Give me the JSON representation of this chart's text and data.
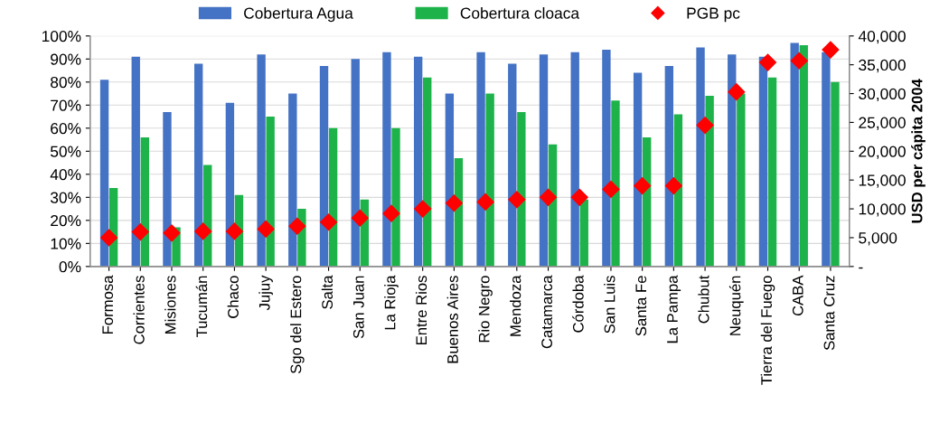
{
  "chart_data": {
    "type": "bar",
    "categories": [
      "Formosa",
      "Corrientes",
      "Misiones",
      "Tucumán",
      "Chaco",
      "Jujuy",
      "Sgo del Estero",
      "Salta",
      "San Juan",
      "La Rioja",
      "Entre Rios",
      "Buenos Aires",
      "Rio Negro",
      "Mendoza",
      "Catamarca",
      "Córdoba",
      "San Luis",
      "Santa Fe",
      "La Pampa",
      "Chubut",
      "Neuquén",
      "Tierra del Fuego",
      "CABA",
      "Santa Cruz"
    ],
    "series": [
      {
        "name": "Cobertura Agua",
        "color": "#4472c4",
        "values": [
          81,
          91,
          67,
          88,
          71,
          92,
          75,
          87,
          90,
          93,
          91,
          75,
          93,
          88,
          92,
          93,
          94,
          84,
          87,
          95,
          92,
          91,
          97,
          93
        ]
      },
      {
        "name": "Cobertura cloaca",
        "color": "#1db34a",
        "values": [
          34,
          56,
          17,
          44,
          31,
          65,
          25,
          60,
          29,
          60,
          82,
          47,
          75,
          67,
          53,
          29,
          72,
          56,
          66,
          74,
          75,
          82,
          96,
          80
        ]
      },
      {
        "name": "PGB pc",
        "type": "scatter",
        "axis": "y2",
        "color": "#ff0000",
        "marker": "diamond",
        "values": [
          5000,
          6000,
          5800,
          6100,
          6100,
          6500,
          7000,
          7700,
          8400,
          9200,
          10000,
          11000,
          11200,
          11600,
          12000,
          12000,
          13400,
          14000,
          14000,
          24500,
          30300,
          35400,
          35700,
          37600
        ]
      }
    ],
    "ylim": [
      0,
      100
    ],
    "yticks": [
      {
        "value": 0,
        "label": "0%"
      },
      {
        "value": 10,
        "label": "10%"
      },
      {
        "value": 20,
        "label": "20%"
      },
      {
        "value": 30,
        "label": "30%"
      },
      {
        "value": 40,
        "label": "40%"
      },
      {
        "value": 50,
        "label": "50%"
      },
      {
        "value": 60,
        "label": "60%"
      },
      {
        "value": 70,
        "label": "70%"
      },
      {
        "value": 80,
        "label": "80%"
      },
      {
        "value": 90,
        "label": "90%"
      },
      {
        "value": 100,
        "label": "100%"
      }
    ],
    "y2lim": [
      0,
      40000
    ],
    "y2ticks": [
      {
        "value": 0,
        "label": "-"
      },
      {
        "value": 5000,
        "label": "5,000"
      },
      {
        "value": 10000,
        "label": "10,000"
      },
      {
        "value": 15000,
        "label": "15,000"
      },
      {
        "value": 20000,
        "label": "20,000"
      },
      {
        "value": 25000,
        "label": "25,000"
      },
      {
        "value": 30000,
        "label": "30,000"
      },
      {
        "value": 35000,
        "label": "35,000"
      },
      {
        "value": 40000,
        "label": "40,000"
      }
    ],
    "y2label": "USD per cápita 2004",
    "grid": "y",
    "legend": "top"
  }
}
